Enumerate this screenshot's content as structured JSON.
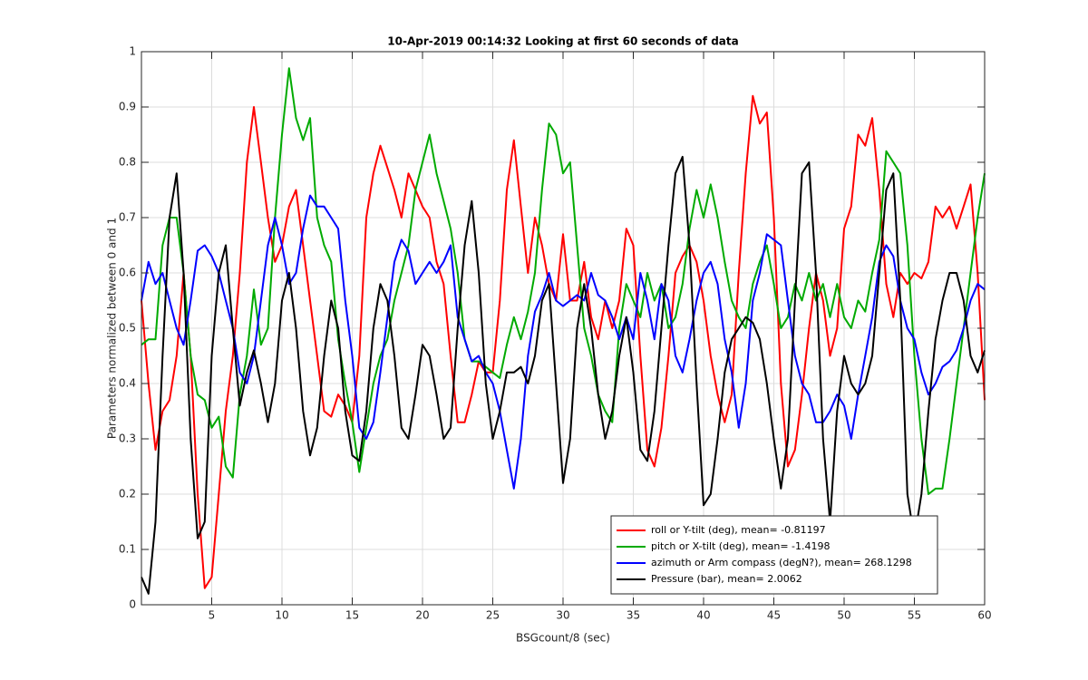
{
  "chart_data": {
    "type": "line",
    "title": "10-Apr-2019 00:14:32 Looking at first 60 seconds of data",
    "x_label": "BSGcount/8 (sec)",
    "y_label": "Parameters normalized between 0 and 1",
    "xlim": [
      0,
      60
    ],
    "ylim": [
      0,
      1
    ],
    "xticks": [
      5,
      10,
      15,
      20,
      25,
      30,
      35,
      40,
      45,
      50,
      55,
      60
    ],
    "yticks": [
      0,
      0.1,
      0.2,
      0.3,
      0.4,
      0.5,
      0.6,
      0.7,
      0.8,
      0.9,
      1
    ],
    "grid": true,
    "legend": "lower right",
    "x": [
      0,
      0.5,
      1,
      1.5,
      2,
      2.5,
      3,
      3.5,
      4,
      4.5,
      5,
      5.5,
      6,
      6.5,
      7,
      7.5,
      8,
      8.5,
      9,
      9.5,
      10,
      10.5,
      11,
      11.5,
      12,
      12.5,
      13,
      13.5,
      14,
      14.5,
      15,
      15.5,
      16,
      16.5,
      17,
      17.5,
      18,
      18.5,
      19,
      19.5,
      20,
      20.5,
      21,
      21.5,
      22,
      22.5,
      23,
      23.5,
      24,
      24.5,
      25,
      25.5,
      26,
      26.5,
      27,
      27.5,
      28,
      28.5,
      29,
      29.5,
      30,
      30.5,
      31,
      31.5,
      32,
      32.5,
      33,
      33.5,
      34,
      34.5,
      35,
      35.5,
      36,
      36.5,
      37,
      37.5,
      38,
      38.5,
      39,
      39.5,
      40,
      40.5,
      41,
      41.5,
      42,
      42.5,
      43,
      43.5,
      44,
      44.5,
      45,
      45.5,
      46,
      46.5,
      47,
      47.5,
      48,
      48.5,
      49,
      49.5,
      50,
      50.5,
      51,
      51.5,
      52,
      52.5,
      53,
      53.5,
      54,
      54.5,
      55,
      55.5,
      56,
      56.5,
      57,
      57.5,
      58,
      58.5,
      59,
      59.5,
      60
    ],
    "series": [
      {
        "name": "roll or Y-tilt (deg), mean= -0.81197",
        "color": "#ff0000",
        "values": [
          0.55,
          0.4,
          0.28,
          0.35,
          0.37,
          0.45,
          0.6,
          0.45,
          0.2,
          0.03,
          0.05,
          0.2,
          0.35,
          0.45,
          0.6,
          0.8,
          0.9,
          0.8,
          0.7,
          0.62,
          0.65,
          0.72,
          0.75,
          0.65,
          0.55,
          0.45,
          0.35,
          0.34,
          0.38,
          0.36,
          0.33,
          0.45,
          0.7,
          0.78,
          0.83,
          0.79,
          0.75,
          0.7,
          0.78,
          0.75,
          0.72,
          0.7,
          0.62,
          0.58,
          0.45,
          0.33,
          0.33,
          0.38,
          0.44,
          0.42,
          0.42,
          0.55,
          0.75,
          0.84,
          0.72,
          0.6,
          0.7,
          0.65,
          0.58,
          0.55,
          0.67,
          0.55,
          0.55,
          0.62,
          0.52,
          0.48,
          0.55,
          0.5,
          0.55,
          0.68,
          0.65,
          0.45,
          0.28,
          0.25,
          0.32,
          0.45,
          0.6,
          0.63,
          0.65,
          0.62,
          0.55,
          0.45,
          0.38,
          0.33,
          0.38,
          0.6,
          0.78,
          0.92,
          0.87,
          0.89,
          0.7,
          0.4,
          0.25,
          0.28,
          0.38,
          0.5,
          0.6,
          0.55,
          0.45,
          0.5,
          0.68,
          0.72,
          0.85,
          0.83,
          0.88,
          0.75,
          0.58,
          0.52,
          0.6,
          0.58,
          0.6,
          0.59,
          0.62,
          0.72,
          0.7,
          0.72,
          0.68,
          0.72,
          0.76,
          0.6,
          0.37
        ]
      },
      {
        "name": "pitch or X-tilt (deg), mean= -1.4198",
        "color": "#00aa00",
        "values": [
          0.47,
          0.48,
          0.48,
          0.65,
          0.7,
          0.7,
          0.6,
          0.45,
          0.38,
          0.37,
          0.32,
          0.34,
          0.25,
          0.23,
          0.38,
          0.45,
          0.57,
          0.47,
          0.5,
          0.7,
          0.85,
          0.97,
          0.88,
          0.84,
          0.88,
          0.7,
          0.65,
          0.62,
          0.48,
          0.4,
          0.33,
          0.24,
          0.32,
          0.4,
          0.45,
          0.48,
          0.55,
          0.6,
          0.65,
          0.75,
          0.8,
          0.85,
          0.78,
          0.73,
          0.68,
          0.6,
          0.48,
          0.44,
          0.44,
          0.43,
          0.42,
          0.41,
          0.47,
          0.52,
          0.48,
          0.53,
          0.6,
          0.75,
          0.87,
          0.85,
          0.78,
          0.8,
          0.65,
          0.5,
          0.45,
          0.38,
          0.35,
          0.33,
          0.5,
          0.58,
          0.55,
          0.52,
          0.6,
          0.55,
          0.58,
          0.5,
          0.52,
          0.58,
          0.68,
          0.75,
          0.7,
          0.76,
          0.7,
          0.62,
          0.55,
          0.52,
          0.5,
          0.58,
          0.62,
          0.65,
          0.58,
          0.5,
          0.52,
          0.58,
          0.55,
          0.6,
          0.55,
          0.58,
          0.52,
          0.58,
          0.52,
          0.5,
          0.55,
          0.53,
          0.6,
          0.66,
          0.82,
          0.8,
          0.78,
          0.65,
          0.45,
          0.3,
          0.2,
          0.21,
          0.21,
          0.3,
          0.4,
          0.5,
          0.6,
          0.7,
          0.78
        ]
      },
      {
        "name": "azimuth or Arm compass (degN?), mean= 268.1298",
        "color": "#0000ff",
        "values": [
          0.55,
          0.62,
          0.58,
          0.6,
          0.55,
          0.5,
          0.47,
          0.55,
          0.64,
          0.65,
          0.63,
          0.6,
          0.55,
          0.5,
          0.42,
          0.4,
          0.45,
          0.55,
          0.65,
          0.7,
          0.65,
          0.58,
          0.6,
          0.68,
          0.74,
          0.72,
          0.72,
          0.7,
          0.68,
          0.55,
          0.45,
          0.32,
          0.3,
          0.33,
          0.42,
          0.52,
          0.62,
          0.66,
          0.64,
          0.58,
          0.6,
          0.62,
          0.6,
          0.62,
          0.65,
          0.52,
          0.48,
          0.44,
          0.45,
          0.42,
          0.4,
          0.35,
          0.28,
          0.21,
          0.3,
          0.45,
          0.53,
          0.56,
          0.6,
          0.55,
          0.54,
          0.55,
          0.56,
          0.55,
          0.6,
          0.56,
          0.55,
          0.52,
          0.48,
          0.52,
          0.48,
          0.6,
          0.55,
          0.48,
          0.58,
          0.55,
          0.45,
          0.42,
          0.48,
          0.55,
          0.6,
          0.62,
          0.58,
          0.48,
          0.42,
          0.32,
          0.4,
          0.55,
          0.6,
          0.67,
          0.66,
          0.65,
          0.55,
          0.45,
          0.4,
          0.38,
          0.33,
          0.33,
          0.35,
          0.38,
          0.36,
          0.3,
          0.38,
          0.45,
          0.52,
          0.62,
          0.65,
          0.63,
          0.55,
          0.5,
          0.48,
          0.42,
          0.38,
          0.4,
          0.43,
          0.44,
          0.46,
          0.5,
          0.55,
          0.58,
          0.57
        ]
      },
      {
        "name": "Pressure (bar), mean= 2.0062",
        "color": "#000000",
        "values": [
          0.05,
          0.02,
          0.15,
          0.45,
          0.7,
          0.78,
          0.6,
          0.3,
          0.12,
          0.15,
          0.45,
          0.6,
          0.65,
          0.5,
          0.36,
          0.42,
          0.46,
          0.4,
          0.33,
          0.4,
          0.55,
          0.6,
          0.5,
          0.35,
          0.27,
          0.32,
          0.45,
          0.55,
          0.5,
          0.35,
          0.27,
          0.26,
          0.35,
          0.5,
          0.58,
          0.55,
          0.45,
          0.32,
          0.3,
          0.38,
          0.47,
          0.45,
          0.38,
          0.3,
          0.32,
          0.5,
          0.65,
          0.73,
          0.6,
          0.4,
          0.3,
          0.35,
          0.42,
          0.42,
          0.43,
          0.4,
          0.45,
          0.55,
          0.58,
          0.4,
          0.22,
          0.3,
          0.5,
          0.58,
          0.5,
          0.38,
          0.3,
          0.35,
          0.45,
          0.52,
          0.42,
          0.28,
          0.26,
          0.35,
          0.5,
          0.65,
          0.78,
          0.81,
          0.65,
          0.4,
          0.18,
          0.2,
          0.3,
          0.42,
          0.48,
          0.5,
          0.52,
          0.51,
          0.48,
          0.4,
          0.3,
          0.21,
          0.3,
          0.55,
          0.78,
          0.8,
          0.6,
          0.3,
          0.15,
          0.35,
          0.45,
          0.4,
          0.38,
          0.4,
          0.45,
          0.6,
          0.75,
          0.78,
          0.55,
          0.2,
          0.12,
          0.2,
          0.35,
          0.48,
          0.55,
          0.6,
          0.6,
          0.55,
          0.45,
          0.42,
          0.46
        ]
      }
    ]
  }
}
